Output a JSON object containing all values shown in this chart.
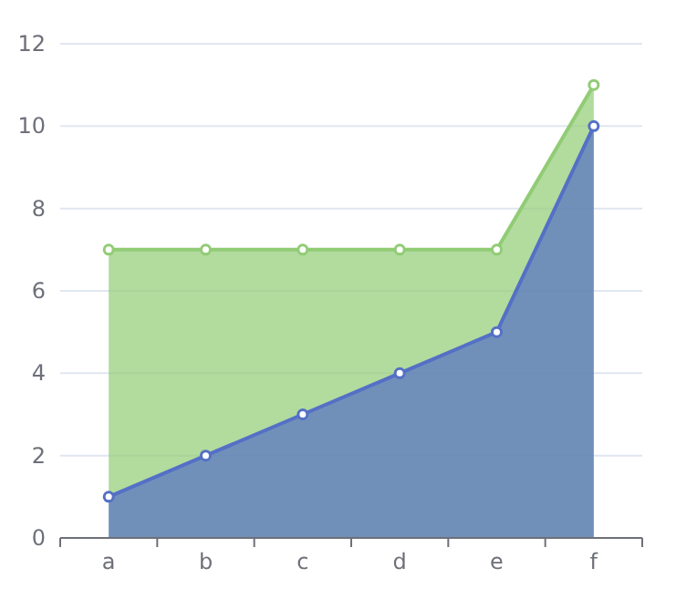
{
  "chart_data": {
    "type": "area",
    "categories": [
      "a",
      "b",
      "c",
      "d",
      "e",
      "f"
    ],
    "series": [
      {
        "color": "#91cc75",
        "values": [
          7,
          7,
          7,
          7,
          7,
          11
        ]
      },
      {
        "color": "#5470c6",
        "values": [
          1,
          2,
          3,
          4,
          5,
          10
        ]
      }
    ],
    "ylim": [
      0,
      12
    ],
    "yticks": [
      0,
      2,
      4,
      6,
      8,
      10,
      12
    ],
    "grid": "y",
    "marker": "circle",
    "line_style": "solid"
  }
}
